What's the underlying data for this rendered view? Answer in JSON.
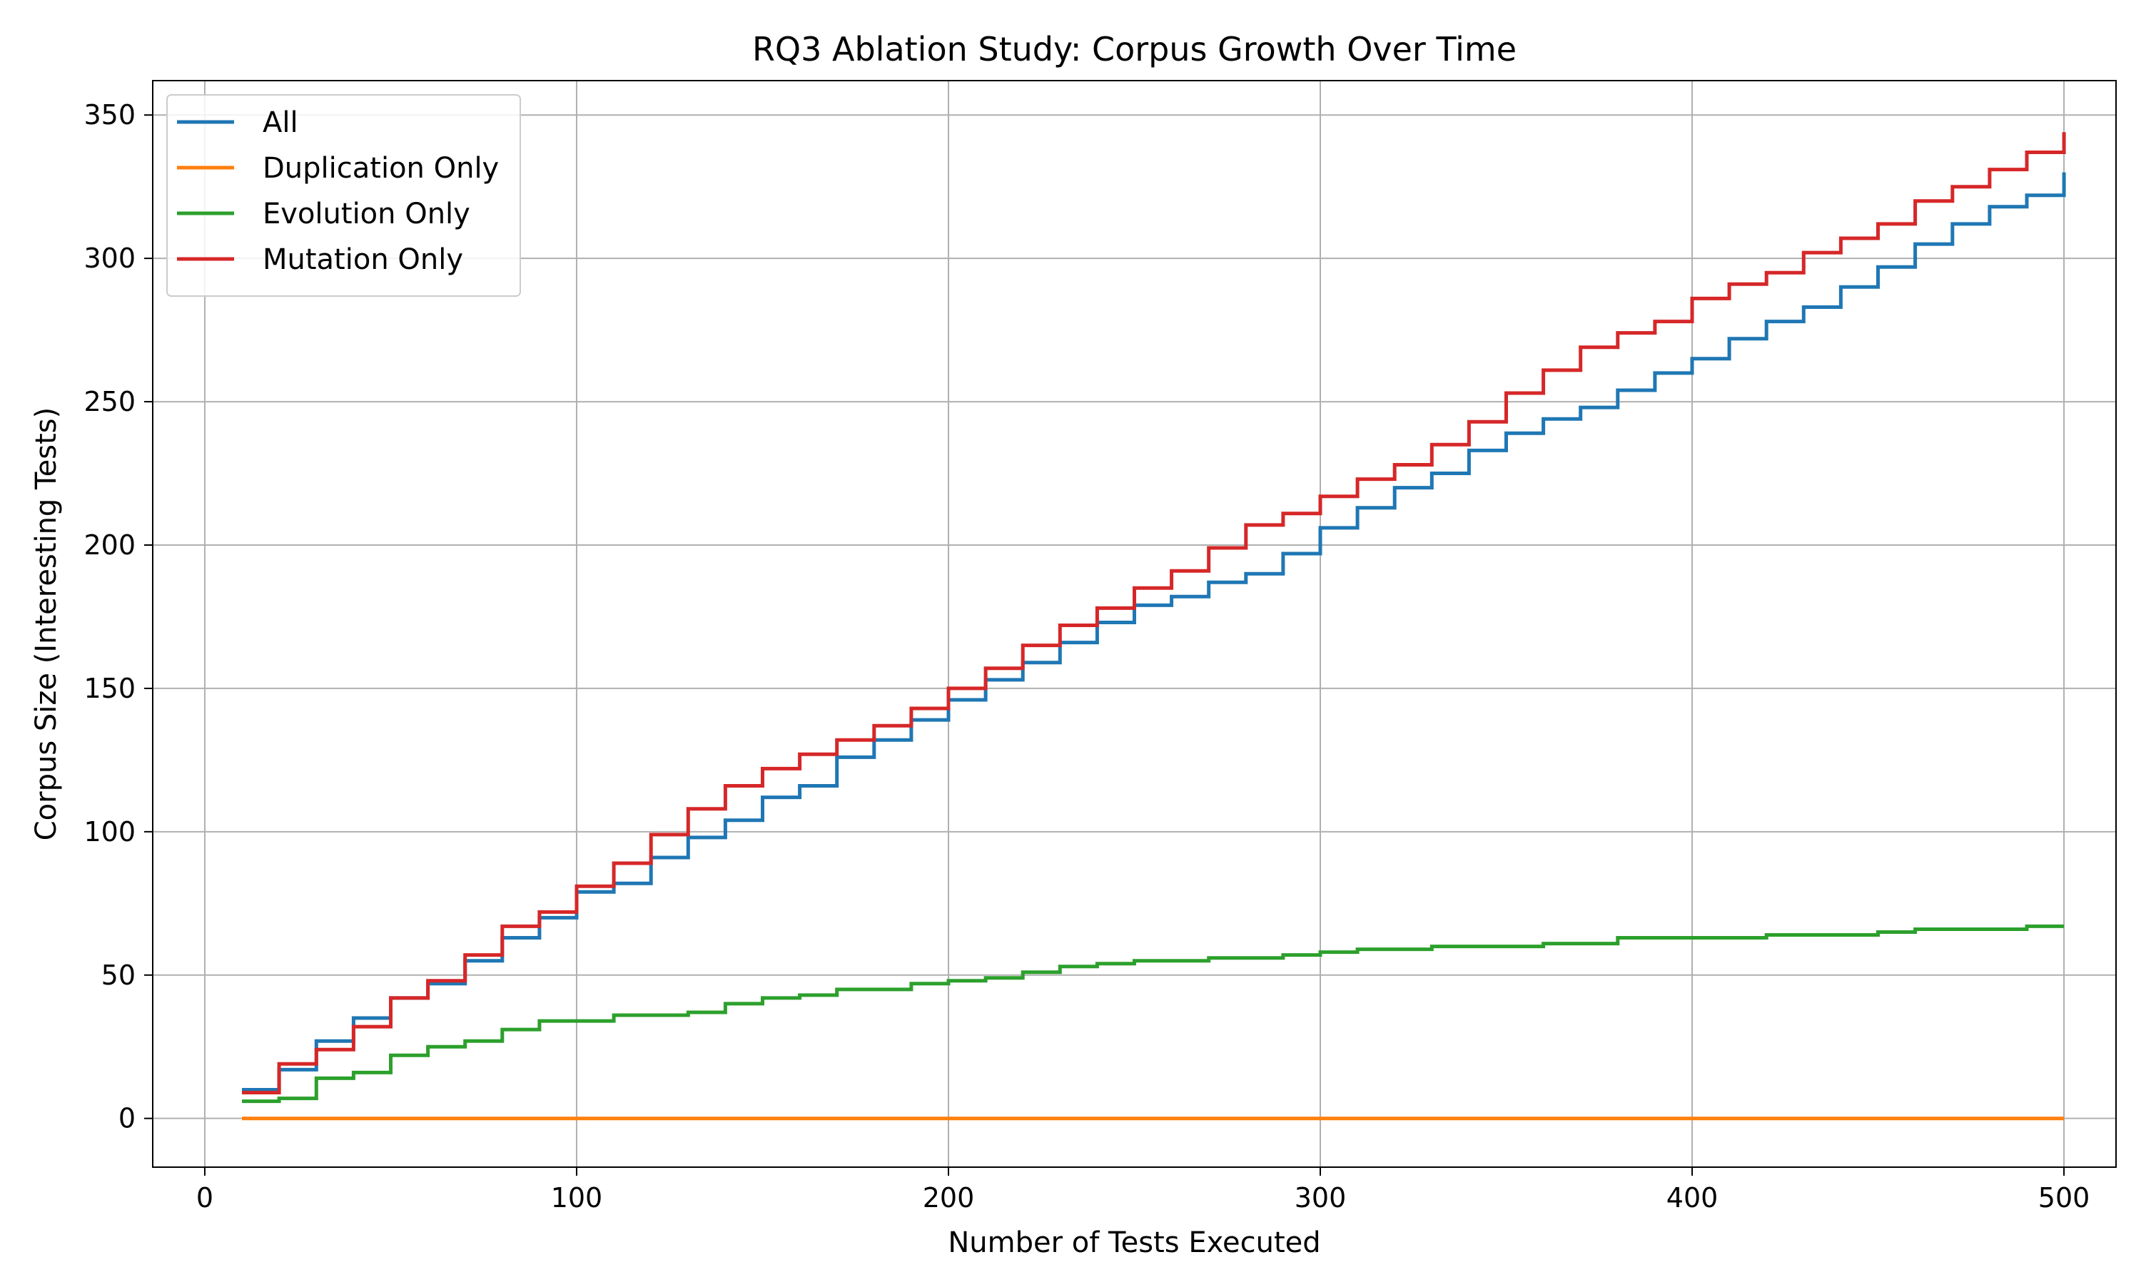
{
  "chart_data": {
    "type": "line",
    "step": "post",
    "title": "RQ3 Ablation Study: Corpus Growth Over Time",
    "xlabel": "Number of Tests Executed",
    "ylabel": "Corpus Size (Interesting Tests)",
    "xlim": [
      -14,
      514
    ],
    "ylim": [
      -17,
      362
    ],
    "xticks": [
      0,
      100,
      200,
      300,
      400,
      500
    ],
    "yticks": [
      0,
      50,
      100,
      150,
      200,
      250,
      300,
      350
    ],
    "grid": true,
    "legend_position": "top-left",
    "x": [
      10,
      20,
      30,
      40,
      50,
      60,
      70,
      80,
      90,
      100,
      110,
      120,
      130,
      140,
      150,
      160,
      170,
      180,
      190,
      200,
      210,
      220,
      230,
      240,
      250,
      260,
      270,
      280,
      290,
      300,
      310,
      320,
      330,
      340,
      350,
      360,
      370,
      380,
      390,
      400,
      410,
      420,
      430,
      440,
      450,
      460,
      470,
      480,
      490,
      500
    ],
    "series": [
      {
        "name": "All",
        "color": "#1f77b4",
        "values": [
          10,
          17,
          27,
          35,
          42,
          47,
          55,
          63,
          70,
          79,
          82,
          91,
          98,
          104,
          112,
          116,
          126,
          132,
          139,
          146,
          153,
          159,
          166,
          173,
          179,
          182,
          187,
          190,
          197,
          206,
          213,
          220,
          225,
          233,
          239,
          244,
          248,
          254,
          260,
          265,
          272,
          278,
          283,
          290,
          297,
          305,
          312,
          318,
          322,
          330
        ]
      },
      {
        "name": "Duplication Only",
        "color": "#ff7f0e",
        "values": [
          0,
          0,
          0,
          0,
          0,
          0,
          0,
          0,
          0,
          0,
          0,
          0,
          0,
          0,
          0,
          0,
          0,
          0,
          0,
          0,
          0,
          0,
          0,
          0,
          0,
          0,
          0,
          0,
          0,
          0,
          0,
          0,
          0,
          0,
          0,
          0,
          0,
          0,
          0,
          0,
          0,
          0,
          0,
          0,
          0,
          0,
          0,
          0,
          0,
          0
        ]
      },
      {
        "name": "Evolution Only",
        "color": "#2ca02c",
        "values": [
          6,
          7,
          14,
          16,
          22,
          25,
          27,
          31,
          34,
          34,
          36,
          36,
          37,
          40,
          42,
          43,
          45,
          45,
          47,
          48,
          49,
          51,
          53,
          54,
          55,
          55,
          56,
          56,
          57,
          58,
          59,
          59,
          60,
          60,
          60,
          61,
          61,
          63,
          63,
          63,
          63,
          64,
          64,
          64,
          65,
          66,
          66,
          66,
          67,
          67
        ]
      },
      {
        "name": "Mutation Only",
        "color": "#d62728",
        "values": [
          9,
          19,
          24,
          32,
          42,
          48,
          57,
          67,
          72,
          81,
          89,
          99,
          108,
          116,
          122,
          127,
          132,
          137,
          143,
          150,
          157,
          165,
          172,
          178,
          185,
          191,
          199,
          207,
          211,
          217,
          223,
          228,
          235,
          243,
          253,
          261,
          269,
          274,
          278,
          286,
          291,
          295,
          302,
          307,
          312,
          320,
          325,
          331,
          337,
          344
        ]
      }
    ]
  }
}
